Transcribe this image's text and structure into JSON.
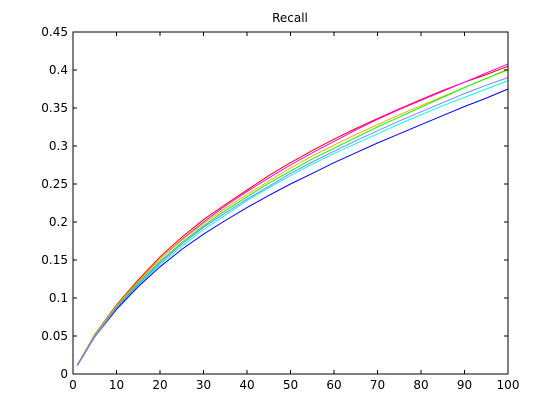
{
  "chart_data": {
    "type": "line",
    "title": "Recall",
    "xlabel": "",
    "ylabel": "",
    "xlim": [
      0,
      100
    ],
    "ylim": [
      0,
      0.45
    ],
    "x_ticks": [
      0,
      10,
      20,
      30,
      40,
      50,
      60,
      70,
      80,
      90,
      100
    ],
    "y_ticks": [
      0,
      0.05,
      0.1,
      0.15,
      0.2,
      0.25,
      0.3,
      0.35,
      0.4,
      0.45
    ],
    "x_tick_labels": [
      "0",
      "10",
      "20",
      "30",
      "40",
      "50",
      "60",
      "70",
      "80",
      "90",
      "100"
    ],
    "y_tick_labels": [
      "0",
      "0.05",
      "0.1",
      "0.15",
      "0.2",
      "0.25",
      "0.3",
      "0.35",
      "0.4",
      "0.45"
    ],
    "grid": false,
    "x": [
      1,
      5,
      10,
      15,
      20,
      25,
      30,
      35,
      40,
      45,
      50,
      55,
      60,
      65,
      70,
      75,
      80,
      85,
      90,
      95,
      100
    ],
    "series": [
      {
        "color": "#ff0000",
        "values": [
          0.012,
          0.052,
          0.091,
          0.124,
          0.154,
          0.18,
          0.203,
          0.223,
          0.242,
          0.261,
          0.278,
          0.294,
          0.309,
          0.323,
          0.336,
          0.349,
          0.361,
          0.373,
          0.384,
          0.394,
          0.405
        ]
      },
      {
        "color": "#ff00ff",
        "values": [
          0.012,
          0.051,
          0.09,
          0.122,
          0.151,
          0.177,
          0.2,
          0.221,
          0.24,
          0.258,
          0.275,
          0.291,
          0.306,
          0.321,
          0.335,
          0.348,
          0.36,
          0.372,
          0.384,
          0.396,
          0.408
        ]
      },
      {
        "color": "#ffaa00",
        "values": [
          0.012,
          0.051,
          0.09,
          0.122,
          0.151,
          0.176,
          0.198,
          0.218,
          0.236,
          0.254,
          0.271,
          0.287,
          0.301,
          0.315,
          0.328,
          0.341,
          0.353,
          0.365,
          0.377,
          0.389,
          0.4
        ]
      },
      {
        "color": "#00ff00",
        "values": [
          0.011,
          0.05,
          0.088,
          0.12,
          0.148,
          0.173,
          0.195,
          0.215,
          0.233,
          0.251,
          0.267,
          0.283,
          0.297,
          0.311,
          0.325,
          0.338,
          0.351,
          0.364,
          0.377,
          0.389,
          0.401
        ]
      },
      {
        "color": "#00ffff",
        "values": [
          0.011,
          0.049,
          0.086,
          0.117,
          0.144,
          0.168,
          0.19,
          0.209,
          0.228,
          0.245,
          0.261,
          0.276,
          0.29,
          0.303,
          0.316,
          0.329,
          0.341,
          0.353,
          0.364,
          0.375,
          0.386
        ]
      },
      {
        "color": "#0000ff",
        "values": [
          0.011,
          0.049,
          0.085,
          0.115,
          0.141,
          0.164,
          0.184,
          0.202,
          0.219,
          0.235,
          0.25,
          0.264,
          0.278,
          0.291,
          0.304,
          0.316,
          0.328,
          0.34,
          0.352,
          0.363,
          0.375
        ]
      },
      {
        "color": "#8080ff",
        "values": [
          0.011,
          0.049,
          0.087,
          0.118,
          0.146,
          0.171,
          0.193,
          0.212,
          0.23,
          0.247,
          0.264,
          0.279,
          0.293,
          0.307,
          0.32,
          0.333,
          0.345,
          0.357,
          0.369,
          0.38,
          0.39
        ]
      }
    ]
  }
}
